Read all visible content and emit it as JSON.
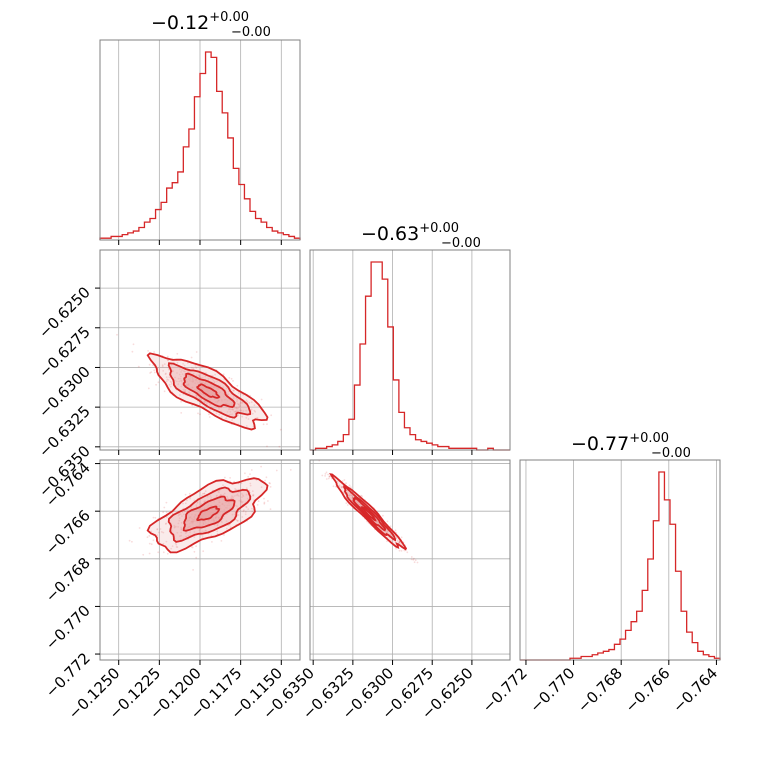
{
  "colors": {
    "accent": "#d62728",
    "fill": "#e7a2a3",
    "grid": "#b0b0b0",
    "frame": "#808080"
  },
  "chart_data": {
    "type": "corner",
    "grid": true,
    "titles": [
      {
        "value": "−0.12",
        "upper": "+0.00",
        "lower": "−0.00"
      },
      {
        "value": "−0.63",
        "upper": "+0.00",
        "lower": "−0.00"
      },
      {
        "value": "−0.77",
        "upper": "+0.00",
        "lower": "−0.00"
      }
    ],
    "params": [
      {
        "range": [
          -0.12615,
          -0.11385
        ],
        "ticks": [
          -0.125,
          -0.1225,
          -0.12,
          -0.1175,
          -0.115
        ],
        "tick_labels": [
          "−0.1250",
          "−0.1225",
          "−0.1200",
          "−0.1175",
          "−0.1150"
        ],
        "median": -0.1195,
        "sigma": 0.0014,
        "hist": [
          1,
          1,
          2,
          2,
          3,
          4,
          5,
          7,
          10,
          12,
          17,
          21,
          29,
          32,
          38,
          52,
          62,
          80,
          93,
          105,
          102,
          83,
          71,
          57,
          40,
          31,
          23,
          16,
          12,
          10,
          7,
          5,
          4,
          3,
          2,
          1
        ]
      },
      {
        "range": [
          -0.6352,
          -0.6226
        ],
        "ticks": [
          -0.635,
          -0.6325,
          -0.63,
          -0.6275,
          -0.625
        ],
        "tick_labels": [
          "−0.6350",
          "−0.6325",
          "−0.6300",
          "−0.6275",
          "−0.6250"
        ],
        "median": -0.6315,
        "sigma": 0.0009,
        "hist": [
          0,
          1,
          1,
          2,
          3,
          5,
          9,
          18,
          38,
          62,
          90,
          110,
          110,
          100,
          72,
          41,
          22,
          13,
          9,
          6,
          5,
          4,
          3,
          2,
          2,
          1,
          1,
          1,
          1,
          1,
          0,
          0,
          1,
          0,
          0,
          0
        ]
      },
      {
        "range": [
          -0.77225,
          -0.76385
        ],
        "ticks": [
          -0.772,
          -0.77,
          -0.768,
          -0.766,
          -0.764
        ],
        "tick_labels": [
          "−0.772",
          "−0.770",
          "−0.768",
          "−0.766",
          "−0.764"
        ],
        "median": -0.7661,
        "sigma": 0.0006,
        "hist": [
          0,
          0,
          0,
          0,
          0,
          0,
          0,
          0,
          0,
          1,
          1,
          2,
          2,
          3,
          4,
          5,
          6,
          9,
          12,
          17,
          22,
          28,
          40,
          58,
          80,
          108,
          92,
          78,
          51,
          28,
          16,
          10,
          5,
          3,
          2,
          1
        ]
      }
    ],
    "correlations": {
      "p0_p1": -0.78,
      "p0_p2": 0.65,
      "p1_p2": -0.97
    }
  }
}
